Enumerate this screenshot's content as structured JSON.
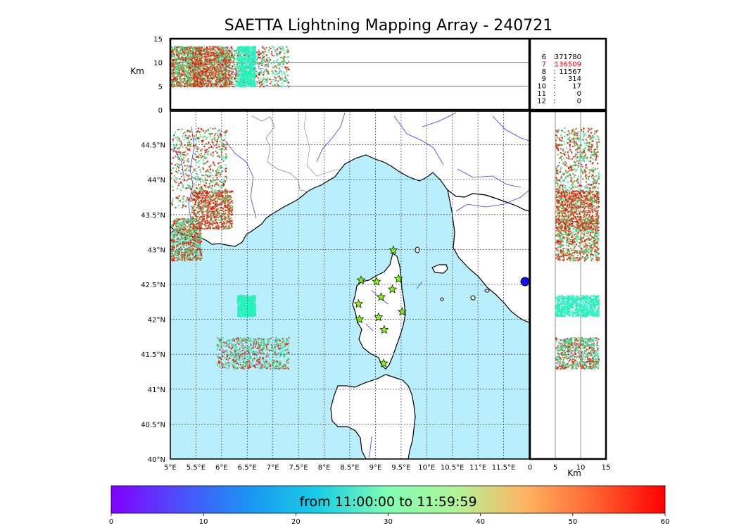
{
  "title": "SAETTA Lightning Mapping Array - 240721",
  "colors": {
    "sea": "#b9eefc",
    "land": "#ffffff",
    "coast": "#000000",
    "rivers": "#3a3aff",
    "borders": "#8a8a8a",
    "grid": "#555555",
    "station_fill": "#80ff00",
    "highlight": "#ff0000"
  },
  "chart_data": [
    {
      "type": "scatter",
      "panel": "map",
      "x_ticks": [
        "5°E",
        "5.5°E",
        "6°E",
        "6.5°E",
        "7°E",
        "7.5°E",
        "8°E",
        "8.5°E",
        "9°E",
        "9.5°E",
        "10°E",
        "10.5°E",
        "11°E",
        "11.5°E"
      ],
      "y_ticks": [
        "40°N",
        "40.5°N",
        "41°N",
        "41.5°N",
        "42°N",
        "42.5°N",
        "43°N",
        "43.5°N",
        "44°N",
        "44.5°N"
      ],
      "xlim": [
        5.0,
        12.0
      ],
      "ylim": [
        40.0,
        44.98
      ],
      "grid": true,
      "stations": [
        {
          "lon": 8.72,
          "lat": 42.56
        },
        {
          "lon": 9.02,
          "lat": 42.54
        },
        {
          "lon": 9.45,
          "lat": 42.58
        },
        {
          "lon": 9.35,
          "lat": 42.99
        },
        {
          "lon": 9.11,
          "lat": 42.32
        },
        {
          "lon": 9.33,
          "lat": 42.43
        },
        {
          "lon": 8.67,
          "lat": 42.22
        },
        {
          "lon": 9.52,
          "lat": 42.11
        },
        {
          "lon": 9.06,
          "lat": 42.03
        },
        {
          "lon": 8.69,
          "lat": 42.0
        },
        {
          "lon": 9.17,
          "lat": 41.85
        },
        {
          "lon": 9.16,
          "lat": 41.37
        }
      ],
      "source_clusters": [
        {
          "lon": [
            5.0,
            6.1
          ],
          "lat": [
            43.6,
            44.75
          ],
          "minutes": [
            15,
            60
          ]
        },
        {
          "lon": [
            5.0,
            5.6
          ],
          "lat": [
            42.85,
            43.45
          ],
          "minutes": [
            20,
            60
          ]
        },
        {
          "lon": [
            5.4,
            6.2
          ],
          "lat": [
            43.3,
            43.85
          ],
          "minutes": [
            35,
            60
          ]
        },
        {
          "lon": [
            5.9,
            7.3
          ],
          "lat": [
            41.3,
            41.75
          ],
          "minutes": [
            0,
            60
          ]
        },
        {
          "lon": [
            6.3,
            6.65
          ],
          "lat": [
            42.05,
            42.35
          ],
          "minutes": [
            10,
            35
          ]
        }
      ]
    },
    {
      "type": "scatter",
      "panel": "longitude-altitude",
      "ylabel": "Km",
      "y_ticks": [
        "0",
        "5",
        "10",
        "15"
      ],
      "ylim": [
        0,
        15
      ],
      "gridlines_at": [
        5,
        10
      ]
    },
    {
      "type": "scatter",
      "panel": "altitude-latitude",
      "xlabel": "Km",
      "x_ticks": [
        "0",
        "5",
        "10",
        "15"
      ],
      "xlim": [
        0,
        15
      ],
      "gridlines_at": [
        5,
        10
      ]
    },
    {
      "type": "table",
      "panel": "station-count",
      "rows": [
        {
          "stations": "6",
          "sources": "371780",
          "highlight": false
        },
        {
          "stations": "7",
          "sources": "136509",
          "highlight": true
        },
        {
          "stations": "8",
          "sources": "11567",
          "highlight": false
        },
        {
          "stations": "9",
          "sources": "314",
          "highlight": false
        },
        {
          "stations": "10",
          "sources": "17",
          "highlight": false
        },
        {
          "stations": "11",
          "sources": "0",
          "highlight": false
        },
        {
          "stations": "12",
          "sources": "0",
          "highlight": false
        }
      ]
    },
    {
      "type": "colorbar",
      "colormap": "rainbow",
      "ticks": [
        "0",
        "10",
        "20",
        "30",
        "40",
        "50",
        "60"
      ],
      "range": [
        0,
        60
      ],
      "label": "from 11:00:00 to 11:59:59"
    }
  ]
}
